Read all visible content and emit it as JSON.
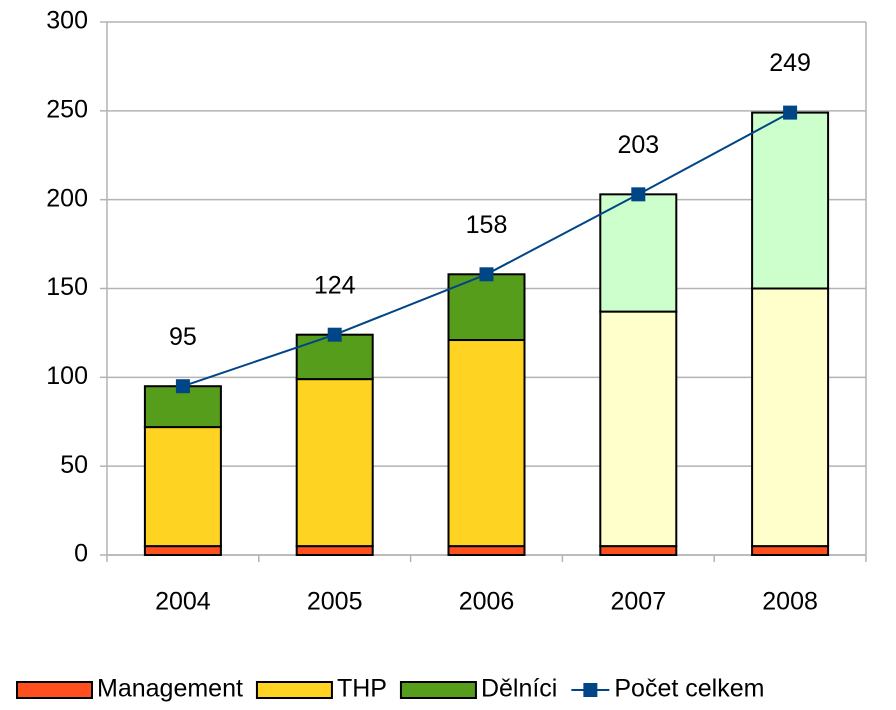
{
  "chart_data": {
    "type": "stacked-bar-line",
    "categories": [
      "2004",
      "2005",
      "2006",
      "2007",
      "2008"
    ],
    "series": [
      {
        "name": "Management",
        "color": "#ff4f1f",
        "colors": [
          "#ff4f1f",
          "#ff4f1f",
          "#ff4f1f",
          "#ff4f1f",
          "#ff4f1f"
        ],
        "values": [
          5,
          5,
          5,
          5,
          5
        ]
      },
      {
        "name": "THP",
        "color": "#ffd321",
        "colors": [
          "#ffd321",
          "#ffd321",
          "#ffd321",
          "#ffffcc",
          "#ffffcc"
        ],
        "values": [
          67,
          94,
          116,
          132,
          145
        ]
      },
      {
        "name": "Dělníci",
        "color": "#579d1c",
        "colors": [
          "#579d1c",
          "#579d1c",
          "#579d1c",
          "#ccffcc",
          "#ccffcc"
        ],
        "values": [
          23,
          25,
          37,
          66,
          99
        ]
      },
      {
        "name": "Počet celkem",
        "type": "line",
        "color": "#004586",
        "values": [
          95,
          124,
          158,
          203,
          249
        ]
      }
    ],
    "ylim": [
      0,
      300
    ],
    "yticks": [
      0,
      50,
      100,
      150,
      200,
      250,
      300
    ],
    "grid": true
  }
}
